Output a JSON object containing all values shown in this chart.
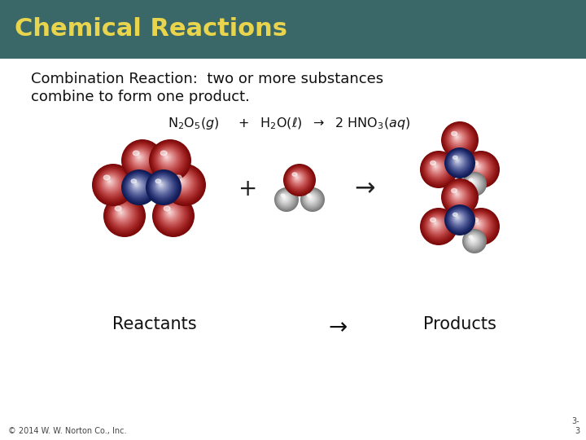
{
  "title": "Chemical Reactions",
  "title_color": "#E8D44D",
  "title_bg_color": "#3A6868",
  "slide_bg_color": "#FFFFFF",
  "body_text_line1": "Combination Reaction:  two or more substances",
  "body_text_line2": "combine to form one product.",
  "bottom_left_text": "© 2014 W. W. Norton Co., Inc.",
  "bottom_right_text": "3-\n3",
  "reactants_label": "Reactants",
  "products_label": "Products",
  "arrow_label": "→",
  "title_bar_height": 72,
  "fig_w": 7.2,
  "fig_h": 5.4,
  "dpi": 100
}
